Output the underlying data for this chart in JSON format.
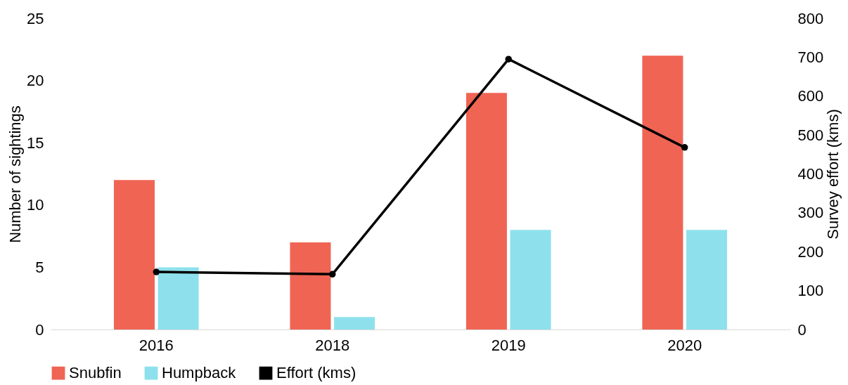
{
  "chart_data": {
    "type": "bar",
    "ylabel": "Number of sightings",
    "y2label": "Survey effort (kms)",
    "categories": [
      "2016",
      "2018",
      "2019",
      "2020"
    ],
    "series": [
      {
        "name": "Snubfin",
        "color": "#f06454",
        "values": [
          12,
          7,
          19,
          22
        ]
      },
      {
        "name": "Humpback",
        "color": "#8ee1ec",
        "values": [
          5,
          1,
          8,
          8
        ]
      },
      {
        "name": "Effort (kms)",
        "color": "#000000",
        "type": "line",
        "axis": "y2",
        "marker": "circle",
        "values": [
          148,
          142,
          695,
          468
        ]
      }
    ],
    "ylim": [
      0,
      25
    ],
    "yticks": [
      0,
      5,
      10,
      15,
      20,
      25
    ],
    "y2lim": [
      0,
      800
    ],
    "y2ticks": [
      0,
      100,
      200,
      300,
      400,
      500,
      600,
      700,
      800
    ],
    "grid": false,
    "legend": "bottom"
  }
}
